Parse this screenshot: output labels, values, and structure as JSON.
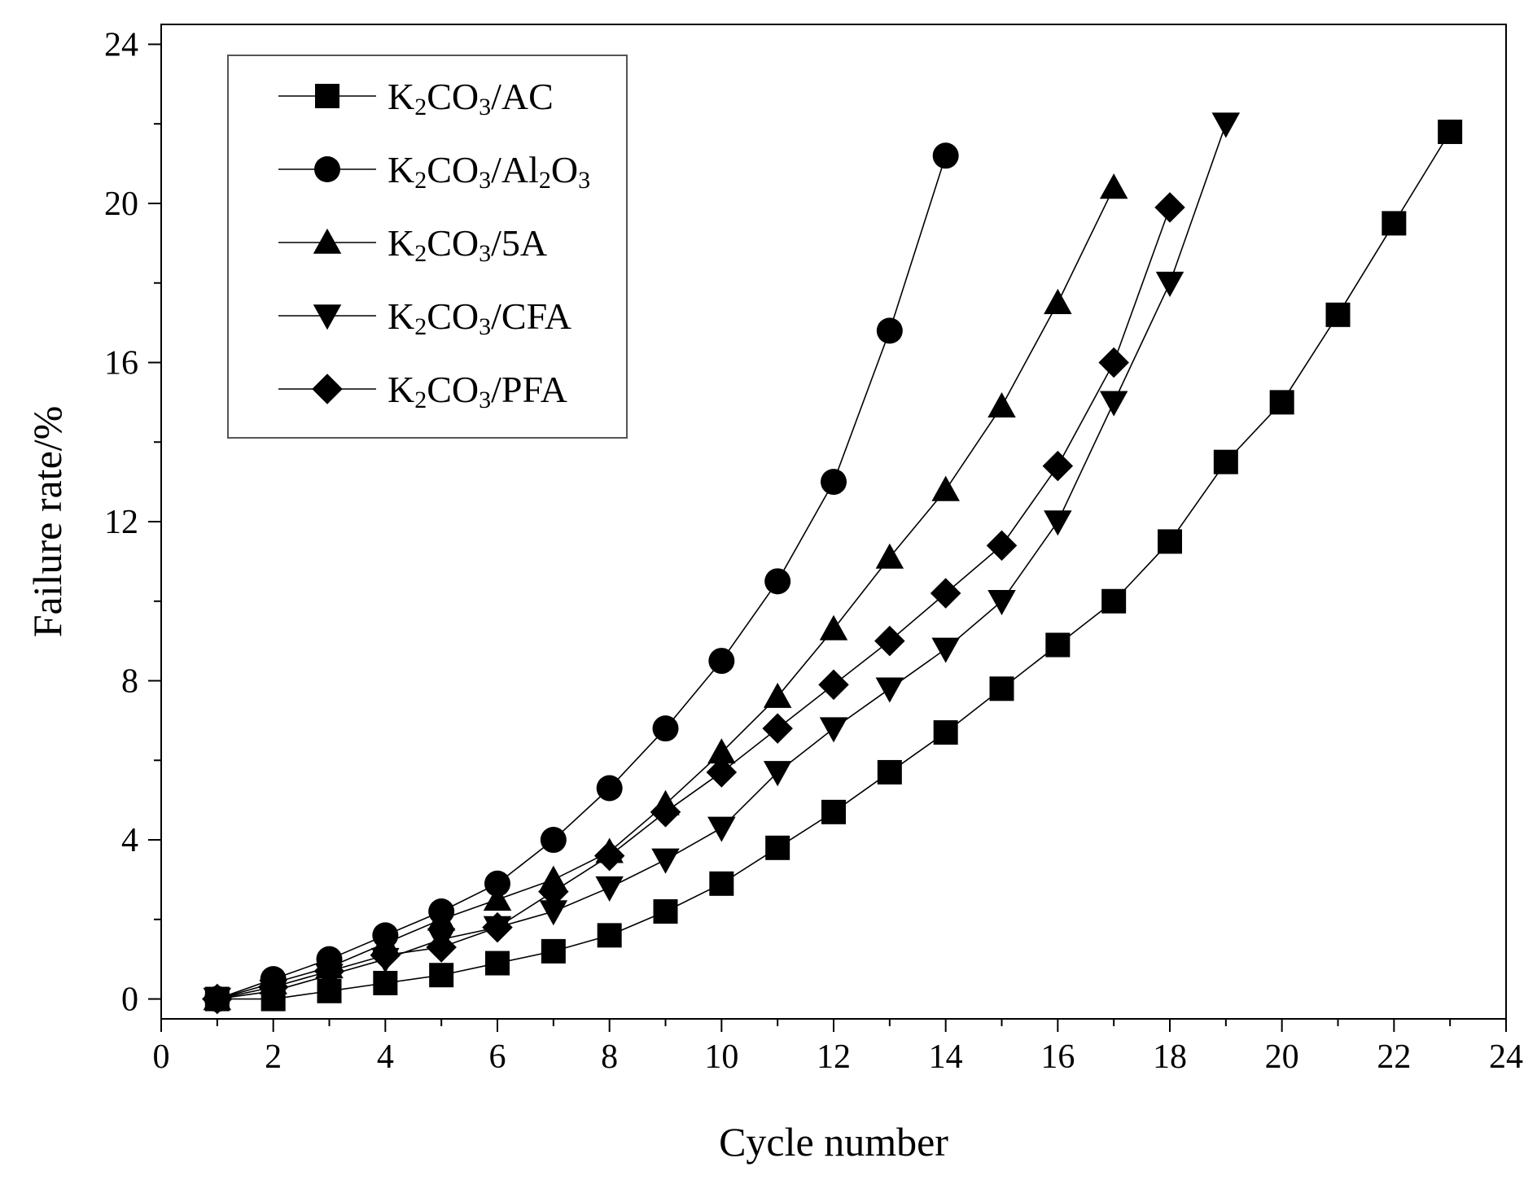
{
  "chart_data": {
    "type": "line",
    "title": "",
    "xlabel": "Cycle number",
    "ylabel": "Failure rate/%",
    "xlim": [
      0,
      24
    ],
    "ylim": [
      -0.5,
      24.5
    ],
    "xticks": [
      0,
      2,
      4,
      6,
      8,
      10,
      12,
      14,
      16,
      18,
      20,
      22,
      24
    ],
    "yticks": [
      0,
      4,
      8,
      12,
      16,
      20,
      24
    ],
    "x_tick_labels": [
      "0",
      "2",
      "4",
      "6",
      "8",
      "10",
      "12",
      "14",
      "16",
      "18",
      "20",
      "22",
      "24"
    ],
    "y_tick_labels": [
      "0",
      "4",
      "8",
      "12",
      "16",
      "20",
      "24"
    ],
    "grid": false,
    "legend_position": "top-left",
    "series": [
      {
        "name": "K2CO3/AC",
        "legend_parts": [
          [
            "K",
            ""
          ],
          [
            "2",
            "sub"
          ],
          [
            "CO",
            ""
          ],
          [
            "3",
            "sub"
          ],
          [
            "/AC",
            ""
          ]
        ],
        "marker": "square",
        "x": [
          1,
          2,
          3,
          4,
          5,
          6,
          7,
          8,
          9,
          10,
          11,
          12,
          13,
          14,
          15,
          16,
          17,
          18,
          19,
          20,
          21,
          22,
          23
        ],
        "y": [
          0,
          0,
          0.2,
          0.4,
          0.6,
          0.9,
          1.2,
          1.6,
          2.2,
          2.9,
          3.8,
          4.7,
          5.7,
          6.7,
          7.8,
          8.9,
          10.0,
          11.5,
          13.5,
          15.0,
          17.2,
          19.5,
          21.8
        ]
      },
      {
        "name": "K2CO3/Al2O3",
        "legend_parts": [
          [
            "K",
            ""
          ],
          [
            "2",
            "sub"
          ],
          [
            "CO",
            ""
          ],
          [
            "3",
            "sub"
          ],
          [
            "/Al",
            ""
          ],
          [
            "2",
            "sub"
          ],
          [
            "O",
            ""
          ],
          [
            "3",
            "sub"
          ]
        ],
        "marker": "circle",
        "x": [
          1,
          2,
          3,
          4,
          5,
          6,
          7,
          8,
          9,
          10,
          11,
          12,
          13,
          14
        ],
        "y": [
          0,
          0.5,
          1.0,
          1.6,
          2.2,
          2.9,
          4.0,
          5.3,
          6.8,
          8.5,
          10.5,
          13.0,
          16.8,
          21.2
        ]
      },
      {
        "name": "K2CO3/5A",
        "legend_parts": [
          [
            "K",
            ""
          ],
          [
            "2",
            "sub"
          ],
          [
            "CO",
            ""
          ],
          [
            "3",
            "sub"
          ],
          [
            "/5A",
            ""
          ]
        ],
        "marker": "triangle-up",
        "x": [
          1,
          2,
          3,
          4,
          5,
          6,
          7,
          8,
          9,
          10,
          11,
          12,
          13,
          14,
          15,
          16,
          17
        ],
        "y": [
          0,
          0.4,
          0.8,
          1.4,
          2.0,
          2.5,
          3.0,
          3.7,
          4.9,
          6.2,
          7.6,
          9.3,
          11.1,
          12.8,
          14.9,
          17.5,
          20.4
        ]
      },
      {
        "name": "K2CO3/CFA",
        "legend_parts": [
          [
            "K",
            ""
          ],
          [
            "2",
            "sub"
          ],
          [
            "CO",
            ""
          ],
          [
            "3",
            "sub"
          ],
          [
            "/CFA",
            ""
          ]
        ],
        "marker": "triangle-down",
        "x": [
          1,
          2,
          3,
          4,
          5,
          6,
          7,
          8,
          9,
          10,
          11,
          12,
          13,
          14,
          15,
          16,
          17,
          18,
          19
        ],
        "y": [
          0,
          0.2,
          0.6,
          1.0,
          1.5,
          1.8,
          2.2,
          2.8,
          3.5,
          4.3,
          5.7,
          6.8,
          7.8,
          8.8,
          10.0,
          12.0,
          15.0,
          18.0,
          22.0
        ]
      },
      {
        "name": "K2CO3/PFA",
        "legend_parts": [
          [
            "K",
            ""
          ],
          [
            "2",
            "sub"
          ],
          [
            "CO",
            ""
          ],
          [
            "3",
            "sub"
          ],
          [
            "/PFA",
            ""
          ]
        ],
        "marker": "diamond",
        "x": [
          1,
          2,
          3,
          4,
          5,
          6,
          7,
          8,
          9,
          10,
          11,
          12,
          13,
          14,
          15,
          16,
          17,
          18
        ],
        "y": [
          0,
          0.3,
          0.7,
          1.1,
          1.3,
          1.8,
          2.7,
          3.6,
          4.7,
          5.7,
          6.8,
          7.9,
          9.0,
          10.2,
          11.4,
          13.4,
          16.0,
          19.9
        ]
      }
    ]
  }
}
